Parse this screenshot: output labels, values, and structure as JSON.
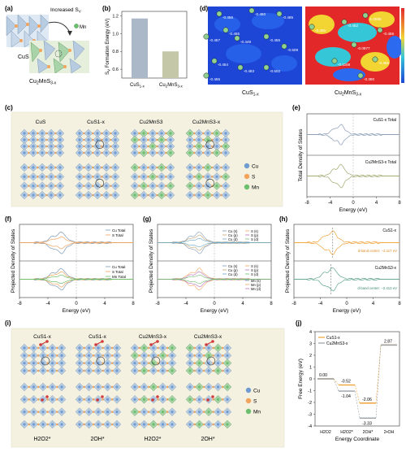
{
  "panels": {
    "a": {
      "label": "(a)",
      "arrow_label": "Increased S",
      "arrow_label_sub": "V",
      "legend_mn": "Mn",
      "struct1": "CuS",
      "struct2": "Cu",
      "struct2_sub1": "2",
      "struct2_mid": "MnS",
      "struct2_sub2": "3-x"
    },
    "b": {
      "label": "(b)",
      "ylabel": "S",
      "ylabel_sub": "V",
      "ylabel_rest": " Formation Energy (eV)",
      "chart_data": {
        "type": "bar",
        "categories": [
          "CuS1-x",
          "Cu2MnS3-x"
        ],
        "values": [
          1.17,
          0.8
        ],
        "ylim": [
          0.5,
          1.25
        ],
        "yticks": [
          "0.6",
          "0.8",
          "1.0",
          "1.2"
        ],
        "colors": [
          "#aab8c8",
          "#c4c7a8"
        ]
      },
      "xt1_main": "CuS",
      "xt1_sub": "1-x",
      "xt2_main": "Cu",
      "xt2_sub1": "2",
      "xt2_mid": "MnS",
      "xt2_sub2": "3-x"
    },
    "d": {
      "label": "(d)",
      "left_values": [
        "-0.456",
        "-0.450",
        "-0.485",
        "-0.455",
        "-0.457",
        "-0.449",
        "-0.455",
        "-0.509",
        "-0.454",
        "-0.483",
        "-0.502",
        "-0.455"
      ],
      "right_values": [
        "-1.0096",
        "-0.455",
        "-0.452",
        "-0.455",
        "-0.0977",
        "-0.1168",
        "-0.455",
        "-0.380"
      ],
      "left_caption_main": "CuS",
      "left_caption_sub": "1-x",
      "right_caption_main": "Cu",
      "right_caption_sub1": "2",
      "right_caption_mid": "MnS",
      "right_caption_sub2": "3-x"
    },
    "c": {
      "label": "(c)",
      "titles": [
        "CuS",
        "CuS1-x",
        "Cu2MnS3",
        "Cu2MnS3-x"
      ],
      "legend": [
        "Cu",
        "S",
        "Mn"
      ]
    },
    "e": {
      "label": "(e)",
      "ylabel": "Total Density of States",
      "xlabel": "Energy (eV)",
      "xticks": [
        "-8",
        "-4",
        "0",
        "4",
        "8"
      ],
      "top_legend": "CuS1-x Total",
      "bottom_legend": "Cu2MnS3-x Total"
    },
    "f": {
      "label": "(f)",
      "ylabel": "Projected Density of States",
      "xlabel": "Energy (eV)",
      "xticks": [
        "-8",
        "-4",
        "0",
        "4",
        "8"
      ],
      "top_legend": [
        "Cu Total",
        "S Total"
      ],
      "bottom_legend": [
        "Cu Total",
        "S Total",
        "Mn Total"
      ]
    },
    "g": {
      "label": "(g)",
      "ylabel": "Projected Density of States",
      "xlabel": "Energy (eV)",
      "xticks": [
        "-8",
        "-4",
        "0",
        "4",
        "8"
      ],
      "top_legend_cu": [
        "Cu (s)",
        "Cu (p)",
        "Cu (d)"
      ],
      "top_legend_s": [
        "S (s)",
        "S (p)",
        "S (d)"
      ],
      "bottom_legend_cu": [
        "Cu (s)",
        "Cu (p)",
        "Cu (d)"
      ],
      "bottom_legend_s": [
        "S (s)",
        "S (p)",
        "S (d)"
      ],
      "bottom_legend_mn": [
        "Mn (s)",
        "Mn (p)",
        "Mn (d)"
      ]
    },
    "h": {
      "label": "(h)",
      "ylabel": "Projected Density of States",
      "xlabel": "Energy (eV)",
      "xticks": [
        "-8",
        "-4",
        "0",
        "4",
        "8"
      ],
      "top_title": "CuS1-x",
      "top_center": "d-band center: −2.117 eV",
      "bottom_title": "Cu2MnS3-x",
      "bottom_center": "d-band center: −2.413 eV"
    },
    "i": {
      "label": "(i)",
      "titles": [
        "CuS1-x",
        "CuS1-x",
        "Cu2MnS3-x",
        "Cu2MnS3-x"
      ],
      "bottom_labels": [
        "H2O2*",
        "2OH*",
        "H2O2*",
        "2OH*"
      ],
      "legend": [
        "Cu",
        "S",
        "Mn"
      ]
    },
    "j": {
      "label": "(j)",
      "ylabel": "Free Energy (eV)",
      "xlabel": "Energy Coordinate",
      "yticks": [
        "4",
        "3",
        "2",
        "1",
        "0",
        "-1",
        "-2",
        "-3",
        "-4"
      ],
      "legend": [
        "CuS1-x",
        "Cu2MnS3-x"
      ],
      "chart_data": {
        "type": "line",
        "categories": [
          "H2O2",
          "H2O2*",
          "2OH*",
          "2•OH"
        ],
        "series": [
          {
            "name": "CuS1-x",
            "values": [
              0.0,
              -0.52,
              -2.06,
              2.87
            ],
            "color": "#f0a33a"
          },
          {
            "name": "Cu2MnS3-x",
            "values": [
              0.0,
              -1.04,
              -3.33,
              2.87
            ],
            "color": "#9aa0a6"
          }
        ],
        "ylim": [
          -4,
          4
        ]
      },
      "value_labels": [
        "0.00",
        "-0.52",
        "-1.04",
        "-2.06",
        "-3.33",
        "2.87"
      ]
    }
  }
}
